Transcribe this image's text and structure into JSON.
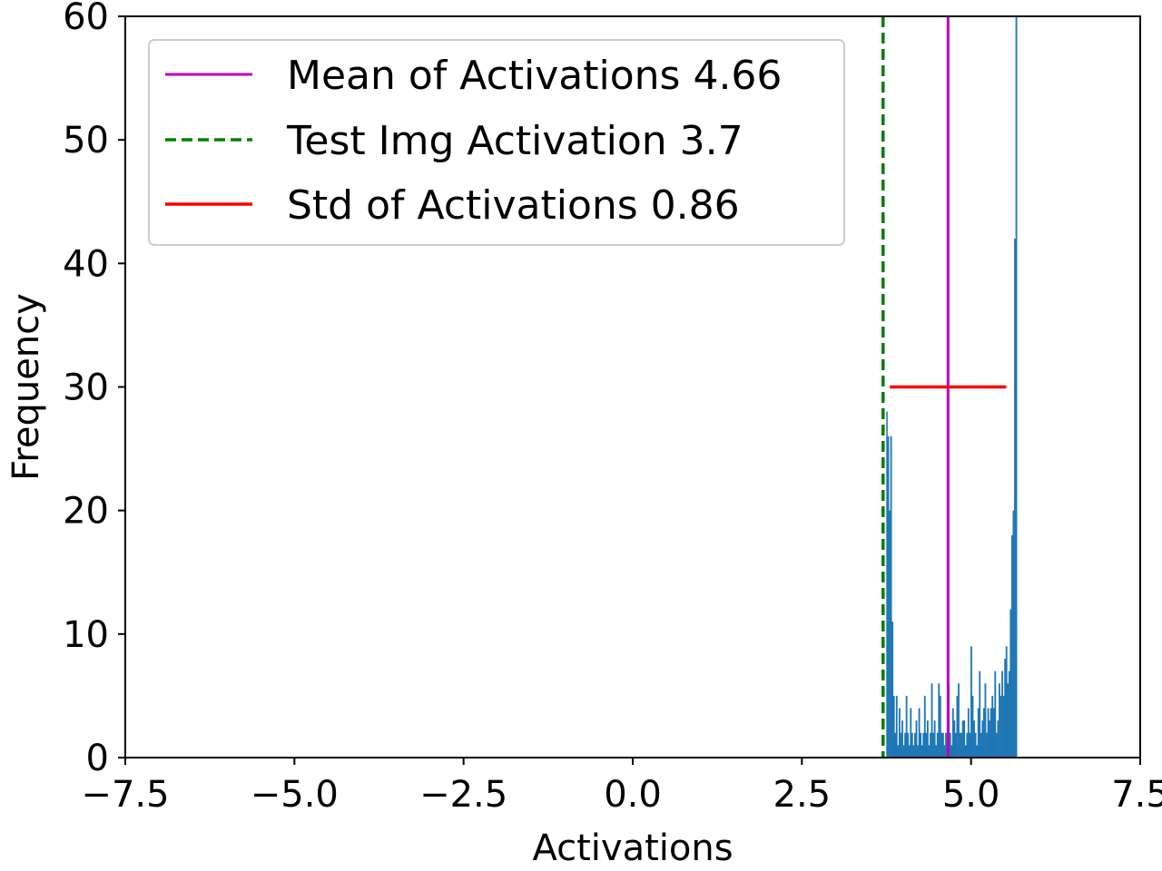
{
  "chart_data": {
    "type": "histogram",
    "title": "",
    "xlabel": "Activations",
    "ylabel": "Frequency",
    "xlim": [
      -7.5,
      7.5
    ],
    "ylim": [
      0,
      60
    ],
    "xticks": [
      -7.5,
      -5.0,
      -2.5,
      0.0,
      2.5,
      5.0,
      7.5
    ],
    "xtick_labels": [
      "−7.5",
      "−5.0",
      "−2.5",
      "0.0",
      "2.5",
      "5.0",
      "7.5"
    ],
    "yticks": [
      0,
      10,
      20,
      30,
      40,
      50,
      60
    ],
    "ytick_labels": [
      "0",
      "10",
      "20",
      "30",
      "40",
      "50",
      "60"
    ],
    "histogram": {
      "color": "#1f77b4",
      "bin_start": 3.66,
      "bin_width": 0.0208,
      "counts": [
        27,
        28,
        21,
        25,
        28,
        26,
        20,
        26,
        11,
        5,
        2,
        5,
        1,
        4,
        2,
        3,
        1,
        2,
        5,
        2,
        1,
        4,
        2,
        1,
        2,
        3,
        1,
        4,
        2,
        1,
        2,
        5,
        2,
        3,
        1,
        2,
        6,
        2,
        3,
        1,
        2,
        6,
        5,
        2,
        2,
        1,
        2,
        2,
        6,
        2,
        1,
        4,
        3,
        2,
        5,
        6,
        2,
        2,
        3,
        3,
        1,
        2,
        4,
        2,
        9,
        5,
        3,
        2,
        1,
        4,
        7,
        2,
        3,
        4,
        6,
        2,
        4,
        3,
        4,
        5,
        4,
        7,
        2,
        3,
        6,
        5,
        7,
        5,
        8,
        9,
        6,
        7,
        12,
        18,
        20,
        42,
        60
      ]
    },
    "mean_line": {
      "value": 4.66,
      "color": "#bf00bf",
      "label": "Mean of Activations 4.66"
    },
    "test_line": {
      "value": 3.7,
      "color": "#008000",
      "label": "Test Img Activation 3.7"
    },
    "std_line": {
      "y": 30,
      "x_from": 3.8,
      "x_to": 5.52,
      "color": "#ff0000",
      "label": "Std of Activations 0.86"
    },
    "legend_position": "top-left"
  }
}
